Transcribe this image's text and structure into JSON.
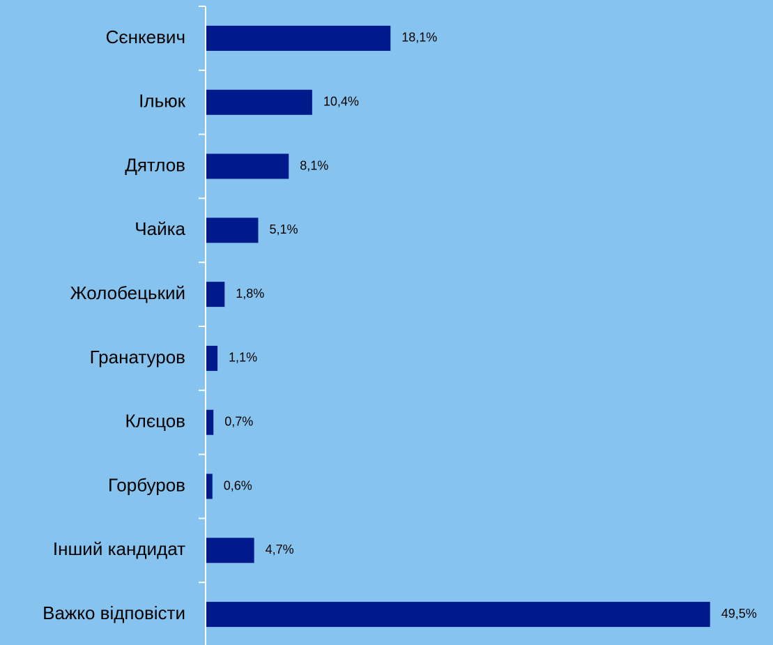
{
  "chart_data": {
    "type": "bar",
    "orientation": "horizontal",
    "categories": [
      "Сєнкевич",
      "Ільюк",
      "Дятлов",
      "Чайка",
      "Жолобецький",
      "Гранатуров",
      "Клєцов",
      "Горбуров",
      "Інший кандидат",
      "Важко відповісти"
    ],
    "values": [
      18.1,
      10.4,
      8.1,
      5.1,
      1.8,
      1.1,
      0.7,
      0.6,
      4.7,
      49.5
    ],
    "value_labels": [
      "18,1%",
      "10,4%",
      "8,1%",
      "5,1%",
      "1,8%",
      "1,1%",
      "0,7%",
      "0,6%",
      "4,7%",
      "49,5%"
    ],
    "color": "#001a8c",
    "xlim": [
      0,
      50
    ]
  }
}
